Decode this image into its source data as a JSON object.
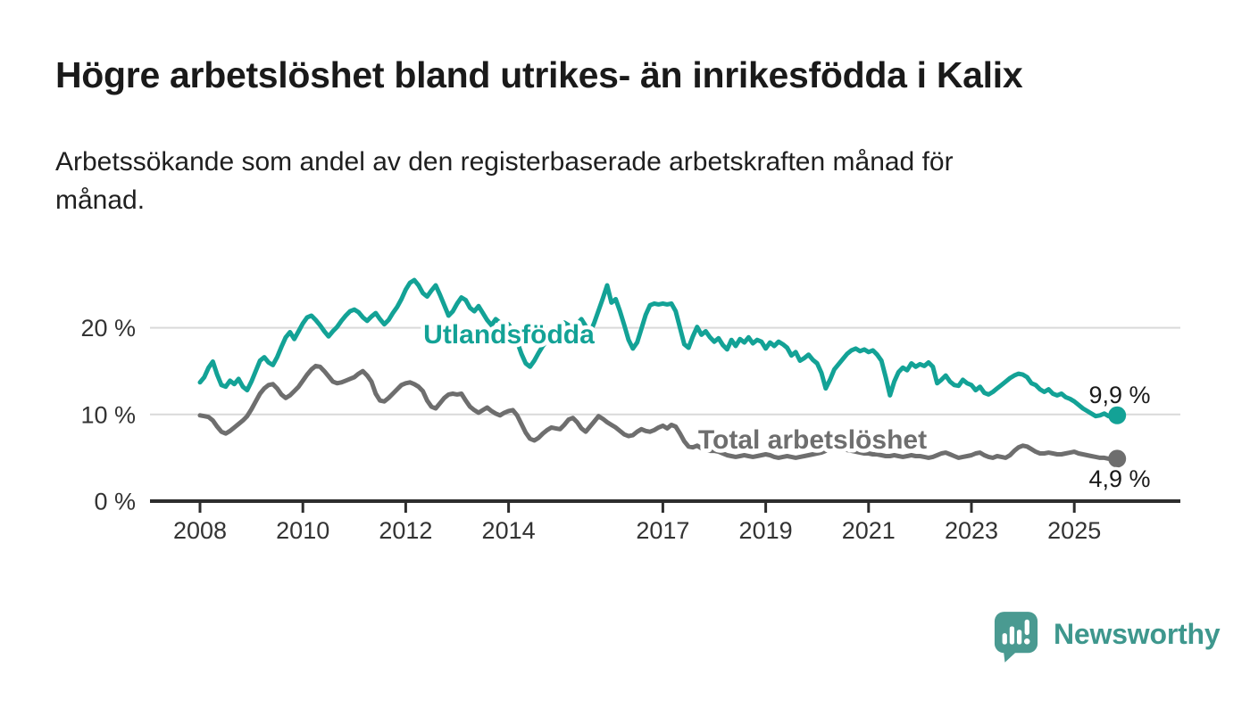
{
  "header": {
    "title": "Högre arbetslöshet bland utrikes- än inrikesfödda i Kalix",
    "subtitle_lines": [
      "Arbetssökande som andel av den registerbaserade arbetskraften månad för",
      "månad."
    ]
  },
  "branding": {
    "logo_text": "Newsworthy",
    "logo_bubble_color": "#4a9a91",
    "wordmark_color": "#3e978d"
  },
  "chart_data": {
    "type": "line",
    "title": "Högre arbetslöshet bland utrikes- än inrikesfödda i Kalix",
    "subtitle": "Arbetssökande som andel av den registerbaserade arbetskraften månad för månad.",
    "x_unit": "month",
    "x_start": "2008-01",
    "x_end": "2025-11",
    "x_tick_years": [
      2008,
      2010,
      2012,
      2014,
      2017,
      2019,
      2021,
      2023,
      2025
    ],
    "y_axis": {
      "tick_values": [
        0,
        10,
        20
      ],
      "tick_labels": [
        "0 %",
        "10 %",
        "20 %"
      ],
      "grid_values": [
        10,
        20
      ],
      "range": [
        0,
        27
      ]
    },
    "grid": "horizontal",
    "legend": "inline-labels",
    "series": [
      {
        "name": "Total arbetslöshet",
        "color": "#6e6e6e",
        "end_label": "4,9 %",
        "last_value": 4.9,
        "values": [
          9.9,
          9.8,
          9.7,
          9.3,
          8.6,
          8.0,
          7.8,
          8.1,
          8.5,
          8.9,
          9.3,
          9.8,
          10.6,
          11.5,
          12.4,
          13.0,
          13.4,
          13.5,
          13.0,
          12.3,
          11.9,
          12.2,
          12.7,
          13.2,
          13.9,
          14.6,
          15.2,
          15.6,
          15.5,
          15.0,
          14.4,
          13.8,
          13.6,
          13.7,
          13.9,
          14.1,
          14.3,
          14.7,
          15.0,
          14.5,
          13.8,
          12.4,
          11.6,
          11.5,
          11.9,
          12.4,
          12.9,
          13.4,
          13.6,
          13.7,
          13.5,
          13.2,
          12.7,
          11.6,
          10.9,
          10.7,
          11.3,
          11.9,
          12.3,
          12.4,
          12.3,
          12.4,
          11.6,
          10.9,
          10.5,
          10.2,
          10.5,
          10.8,
          10.4,
          10.1,
          9.9,
          10.2,
          10.4,
          10.5,
          9.9,
          8.9,
          7.9,
          7.2,
          7.0,
          7.3,
          7.8,
          8.2,
          8.5,
          8.4,
          8.3,
          8.8,
          9.4,
          9.6,
          9.1,
          8.4,
          8.0,
          8.6,
          9.2,
          9.8,
          9.5,
          9.1,
          8.8,
          8.5,
          8.1,
          7.7,
          7.5,
          7.6,
          8.0,
          8.3,
          8.1,
          8.0,
          8.2,
          8.5,
          8.7,
          8.4,
          8.8,
          8.6,
          7.8,
          6.9,
          6.3,
          6.2,
          6.4,
          6.1,
          5.9,
          5.8,
          5.8,
          5.7,
          5.5,
          5.3,
          5.2,
          5.1,
          5.2,
          5.3,
          5.2,
          5.1,
          5.2,
          5.3,
          5.4,
          5.3,
          5.1,
          5.0,
          5.1,
          5.2,
          5.1,
          5.0,
          5.1,
          5.2,
          5.3,
          5.4,
          5.5,
          5.6,
          5.8,
          6.1,
          6.2,
          6.1,
          6.0,
          5.9,
          5.8,
          5.7,
          5.6,
          5.5,
          5.5,
          5.4,
          5.4,
          5.3,
          5.2,
          5.2,
          5.3,
          5.2,
          5.1,
          5.2,
          5.3,
          5.2,
          5.2,
          5.1,
          5.0,
          5.1,
          5.3,
          5.5,
          5.6,
          5.4,
          5.2,
          5.0,
          5.1,
          5.2,
          5.3,
          5.5,
          5.6,
          5.3,
          5.1,
          5.0,
          5.2,
          5.1,
          5.0,
          5.3,
          5.8,
          6.2,
          6.4,
          6.3,
          6.0,
          5.7,
          5.5,
          5.5,
          5.6,
          5.5,
          5.4,
          5.4,
          5.5,
          5.6,
          5.7,
          5.5,
          5.4,
          5.3,
          5.2,
          5.1,
          5.0,
          5.0,
          4.9,
          5.0,
          4.9
        ]
      },
      {
        "name": "Utlandsfödda",
        "color": "#13a296",
        "end_label": "9,9 %",
        "last_value": 9.9,
        "values": [
          13.7,
          14.3,
          15.4,
          16.1,
          14.6,
          13.4,
          13.2,
          13.9,
          13.5,
          14.1,
          13.2,
          12.8,
          13.8,
          15.0,
          16.2,
          16.6,
          16.0,
          15.7,
          16.6,
          17.8,
          18.9,
          19.5,
          18.7,
          19.6,
          20.5,
          21.2,
          21.4,
          20.9,
          20.3,
          19.6,
          19.0,
          19.6,
          20.1,
          20.8,
          21.4,
          21.9,
          22.1,
          21.8,
          21.2,
          20.8,
          21.3,
          21.7,
          21.0,
          20.4,
          20.9,
          21.7,
          22.4,
          23.3,
          24.4,
          25.2,
          25.5,
          24.9,
          24.0,
          23.6,
          24.3,
          24.9,
          23.8,
          22.6,
          21.4,
          21.9,
          22.8,
          23.5,
          23.2,
          22.3,
          21.9,
          22.5,
          21.7,
          20.9,
          20.3,
          21.0,
          20.6,
          20.4,
          20.4,
          19.6,
          18.4,
          17.0,
          15.9,
          15.5,
          16.2,
          17.1,
          17.9,
          18.6,
          19.1,
          19.5,
          19.8,
          20.6,
          20.3,
          19.7,
          20.4,
          21.0,
          20.2,
          19.4,
          20.6,
          22.0,
          23.4,
          24.9,
          22.9,
          23.3,
          21.9,
          20.3,
          18.6,
          17.6,
          18.3,
          19.9,
          21.5,
          22.6,
          22.8,
          22.7,
          22.8,
          22.7,
          22.8,
          21.9,
          20.0,
          18.1,
          17.7,
          19.0,
          20.1,
          19.2,
          19.6,
          18.9,
          18.4,
          18.8,
          18.0,
          17.5,
          18.6,
          17.9,
          18.7,
          18.3,
          18.9,
          18.2,
          18.6,
          18.4,
          17.6,
          18.3,
          17.9,
          18.4,
          18.1,
          17.7,
          16.8,
          17.2,
          16.2,
          16.5,
          16.9,
          16.3,
          15.9,
          14.8,
          13.0,
          14.0,
          15.2,
          15.8,
          16.4,
          17.0,
          17.4,
          17.6,
          17.3,
          17.5,
          17.2,
          17.4,
          16.9,
          16.2,
          14.3,
          12.2,
          13.8,
          14.9,
          15.4,
          15.1,
          15.9,
          15.5,
          15.8,
          15.6,
          16.0,
          15.5,
          13.6,
          14.0,
          14.5,
          13.8,
          13.4,
          13.3,
          14.0,
          13.6,
          13.4,
          12.8,
          13.2,
          12.5,
          12.3,
          12.6,
          13.0,
          13.4,
          13.8,
          14.2,
          14.5,
          14.7,
          14.6,
          14.3,
          13.6,
          13.4,
          12.9,
          12.6,
          12.9,
          12.4,
          12.2,
          12.4,
          12.0,
          11.8,
          11.5,
          11.1,
          10.7,
          10.4,
          10.1,
          9.8,
          9.9,
          10.1,
          9.8,
          9.8,
          9.9
        ]
      }
    ]
  }
}
